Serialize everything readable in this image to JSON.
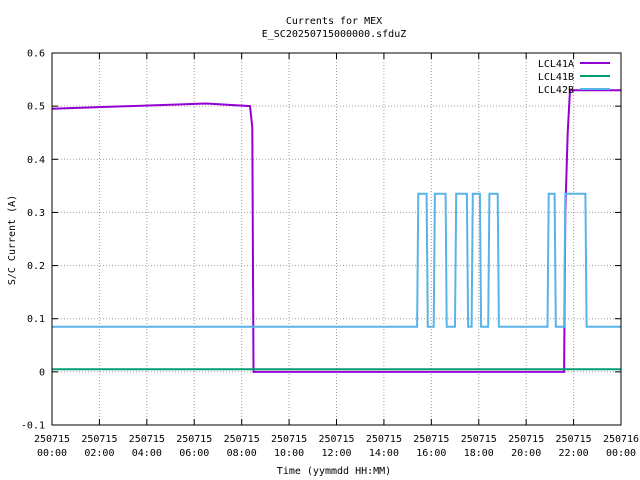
{
  "chart_data": {
    "type": "line",
    "title": "Currents for MEX",
    "subtitle": "E_SC20250715000000.sfduZ",
    "xlabel": "Time (yymmdd HH:MM)",
    "ylabel": "S/C Current (A)",
    "xlim": [
      0,
      24
    ],
    "ylim": [
      -0.1,
      0.6
    ],
    "grid": true,
    "legend_position": "top-right",
    "x_ticks": [
      {
        "x": 0,
        "date": "250715",
        "time": "00:00"
      },
      {
        "x": 2,
        "date": "250715",
        "time": "02:00"
      },
      {
        "x": 4,
        "date": "250715",
        "time": "04:00"
      },
      {
        "x": 6,
        "date": "250715",
        "time": "06:00"
      },
      {
        "x": 8,
        "date": "250715",
        "time": "08:00"
      },
      {
        "x": 10,
        "date": "250715",
        "time": "10:00"
      },
      {
        "x": 12,
        "date": "250715",
        "time": "12:00"
      },
      {
        "x": 14,
        "date": "250715",
        "time": "14:00"
      },
      {
        "x": 16,
        "date": "250715",
        "time": "16:00"
      },
      {
        "x": 18,
        "date": "250715",
        "time": "18:00"
      },
      {
        "x": 20,
        "date": "250715",
        "time": "20:00"
      },
      {
        "x": 22,
        "date": "250715",
        "time": "22:00"
      },
      {
        "x": 24,
        "date": "250716",
        "time": "00:00"
      }
    ],
    "y_ticks": [
      {
        "y": -0.1,
        "label": "-0.1"
      },
      {
        "y": 0,
        "label": "0"
      },
      {
        "y": 0.1,
        "label": "0.1"
      },
      {
        "y": 0.2,
        "label": "0.2"
      },
      {
        "y": 0.3,
        "label": "0.3"
      },
      {
        "y": 0.4,
        "label": "0.4"
      },
      {
        "y": 0.5,
        "label": "0.5"
      },
      {
        "y": 0.6,
        "label": "0.6"
      }
    ],
    "series": [
      {
        "name": "LCL41A",
        "color": "#9400d3",
        "points": [
          [
            0,
            0.495
          ],
          [
            6.5,
            0.505
          ],
          [
            8.35,
            0.5
          ],
          [
            8.45,
            0.46
          ],
          [
            8.5,
            0.0
          ],
          [
            21.6,
            0.0
          ],
          [
            21.65,
            0.3
          ],
          [
            21.75,
            0.45
          ],
          [
            21.85,
            0.53
          ],
          [
            24,
            0.53
          ]
        ]
      },
      {
        "name": "LCL41B",
        "color": "#009e73",
        "points": [
          [
            0,
            0.005
          ],
          [
            24,
            0.005
          ]
        ]
      },
      {
        "name": "LCL42B",
        "color": "#56b4e9",
        "points": [
          [
            0,
            0.085
          ],
          [
            15.4,
            0.085
          ],
          [
            15.45,
            0.335
          ],
          [
            15.8,
            0.335
          ],
          [
            15.85,
            0.085
          ],
          [
            16.1,
            0.085
          ],
          [
            16.15,
            0.335
          ],
          [
            16.6,
            0.335
          ],
          [
            16.65,
            0.085
          ],
          [
            17.0,
            0.085
          ],
          [
            17.05,
            0.335
          ],
          [
            17.5,
            0.335
          ],
          [
            17.55,
            0.085
          ],
          [
            17.7,
            0.085
          ],
          [
            17.75,
            0.335
          ],
          [
            18.05,
            0.335
          ],
          [
            18.1,
            0.085
          ],
          [
            18.4,
            0.085
          ],
          [
            18.45,
            0.335
          ],
          [
            18.8,
            0.335
          ],
          [
            18.85,
            0.085
          ],
          [
            20.9,
            0.085
          ],
          [
            20.95,
            0.335
          ],
          [
            21.2,
            0.335
          ],
          [
            21.25,
            0.085
          ],
          [
            21.6,
            0.085
          ],
          [
            21.65,
            0.335
          ],
          [
            22.5,
            0.335
          ],
          [
            22.55,
            0.085
          ],
          [
            24,
            0.085
          ]
        ]
      }
    ]
  }
}
